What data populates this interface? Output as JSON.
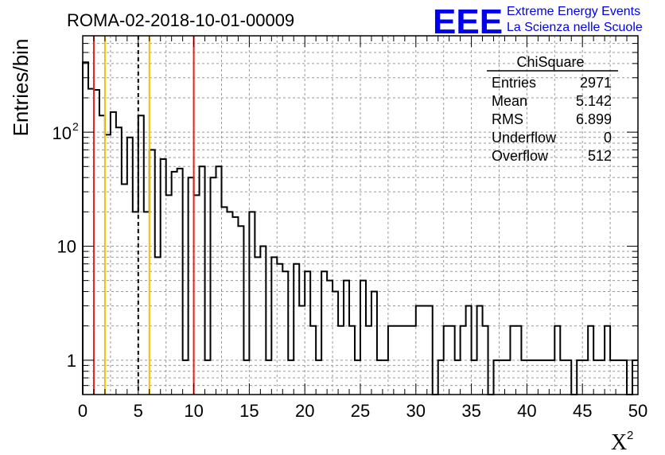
{
  "chart_data": {
    "type": "histogram",
    "title": "ROMA-02-2018-10-01-00009",
    "xlabel": "X",
    "xlabel_sup": "2",
    "ylabel": "Entries/bin",
    "xlim": [
      0,
      50
    ],
    "ylim": [
      0.5,
      700
    ],
    "yscale": "log",
    "grid": true,
    "bin_width": 0.5,
    "x_ticks": [
      "0",
      "5",
      "10",
      "15",
      "20",
      "25",
      "30",
      "35",
      "40",
      "45",
      "50"
    ],
    "y_ticks": [
      {
        "value": 1,
        "label": "1"
      },
      {
        "value": 10,
        "label": "10"
      },
      {
        "value": 100,
        "label": "10",
        "sup": "2"
      }
    ],
    "counts": [
      410,
      240,
      235,
      140,
      95,
      150,
      110,
      35,
      90,
      20,
      140,
      20,
      70,
      8,
      58,
      28,
      45,
      48,
      1,
      40,
      28,
      50,
      1,
      40,
      50,
      22,
      20,
      18,
      15,
      1,
      20,
      8,
      10,
      1,
      8,
      7,
      6,
      1,
      7,
      3,
      6,
      2,
      1,
      6,
      5,
      4,
      2,
      5,
      2,
      1,
      5,
      2,
      4,
      1,
      1,
      2,
      2,
      2,
      2,
      2,
      3,
      3,
      3,
      0,
      1,
      2,
      2,
      1,
      2,
      3,
      1,
      3,
      2,
      0,
      1,
      1,
      1,
      2,
      2,
      1,
      1,
      1,
      1,
      1,
      1,
      2,
      1,
      1,
      0,
      1,
      1,
      2,
      1,
      1,
      2,
      1,
      1,
      1,
      0,
      1
    ],
    "vertical_lines": [
      {
        "x": 1,
        "color": "#e8201c",
        "style": "solid"
      },
      {
        "x": 2,
        "color": "#f2c100",
        "style": "solid"
      },
      {
        "x": 5,
        "color": "#000000",
        "style": "dashed"
      },
      {
        "x": 6,
        "color": "#f2c100",
        "style": "solid"
      },
      {
        "x": 10,
        "color": "#e8201c",
        "style": "solid"
      }
    ],
    "stats_box": {
      "title": "ChiSquare",
      "rows": [
        {
          "label": "Entries",
          "value": "2971"
        },
        {
          "label": "Mean",
          "value": "5.142"
        },
        {
          "label": "RMS",
          "value": "6.899"
        },
        {
          "label": "Underflow",
          "value": "0"
        },
        {
          "label": "Overflow",
          "value": "512"
        }
      ]
    },
    "logo": {
      "big": "EEE",
      "line1": "Extreme Energy Events",
      "line2": "La Scienza nelle Scuole",
      "color": "#0000ee"
    }
  }
}
